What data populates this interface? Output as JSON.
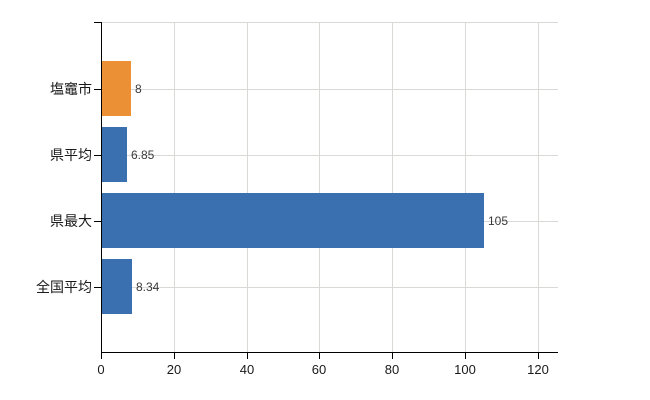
{
  "chart_data": {
    "type": "bar",
    "orientation": "horizontal",
    "title": "",
    "xlabel": "",
    "ylabel": "",
    "categories": [
      "塩竈市",
      "県平均",
      "県最大",
      "全国平均"
    ],
    "values": [
      8,
      6.85,
      105,
      8.34
    ],
    "value_labels": [
      "8",
      "6.85",
      "105",
      "8.34"
    ],
    "bar_colors": [
      "#ec9036",
      "#3a6fb0",
      "#3a6fb0",
      "#3a6fb0"
    ],
    "x_ticks": [
      0,
      20,
      40,
      60,
      80,
      100,
      120
    ],
    "x_tick_labels": [
      "0",
      "20",
      "40",
      "60",
      "80",
      "100",
      "120"
    ],
    "xlim": [
      0,
      125.5
    ],
    "grid": true,
    "legend": false
  },
  "colors": {
    "highlight_bar": "#ec9036",
    "default_bar": "#3a6fb0",
    "gridline": "#d9d9d5",
    "axis": "#000000",
    "category_text": "#1a1a1a",
    "value_text": "#3a3a3a",
    "background": "#ffffff"
  }
}
